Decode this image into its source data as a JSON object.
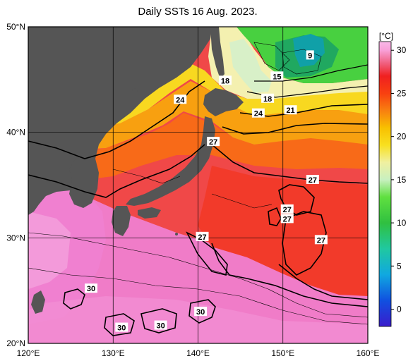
{
  "title": "Daily SSTs 16 Aug. 2023.",
  "map": {
    "lon_range": [
      120,
      160
    ],
    "lat_range": [
      20,
      50
    ],
    "lon_ticks": [
      "120°E",
      "130°E",
      "140°E",
      "150°E",
      "160°E"
    ],
    "lat_ticks": [
      "50°N",
      "40°N",
      "30°N",
      "20°N"
    ],
    "grid": true
  },
  "contour_labels": [
    {
      "text": "9",
      "lon": 153.2,
      "lat": 47.3
    },
    {
      "text": "15",
      "lon": 149.3,
      "lat": 45.3
    },
    {
      "text": "18",
      "lon": 143.2,
      "lat": 44.9
    },
    {
      "text": "18",
      "lon": 148.2,
      "lat": 43.2
    },
    {
      "text": "24",
      "lon": 137.9,
      "lat": 43.1
    },
    {
      "text": "24",
      "lon": 147.1,
      "lat": 41.8
    },
    {
      "text": "21",
      "lon": 150.9,
      "lat": 42.1
    },
    {
      "text": "27",
      "lon": 141.8,
      "lat": 39.1
    },
    {
      "text": "27",
      "lon": 153.5,
      "lat": 35.5
    },
    {
      "text": "27",
      "lon": 150.5,
      "lat": 32.7
    },
    {
      "text": "27",
      "lon": 150.5,
      "lat": 31.8
    },
    {
      "text": "27",
      "lon": 140.5,
      "lat": 30.1
    },
    {
      "text": "27",
      "lon": 154.5,
      "lat": 29.8
    },
    {
      "text": "30",
      "lon": 127.4,
      "lat": 25.2
    },
    {
      "text": "30",
      "lon": 140.3,
      "lat": 23.0
    },
    {
      "text": "30",
      "lon": 135.6,
      "lat": 21.7
    },
    {
      "text": "30",
      "lon": 131.0,
      "lat": 21.5
    }
  ],
  "colorbar": {
    "unit": "[°C]",
    "range": [
      -2,
      31
    ],
    "ticks": [
      "30",
      "25",
      "20",
      "15",
      "10",
      "5",
      "0"
    ],
    "tick_values": [
      30,
      25,
      20,
      15,
      10,
      5,
      0
    ],
    "stops": [
      {
        "v": -2,
        "c": "#3a1ccc"
      },
      {
        "v": 1,
        "c": "#1050e0"
      },
      {
        "v": 4,
        "c": "#10a8e0"
      },
      {
        "v": 7,
        "c": "#20c8a0"
      },
      {
        "v": 10,
        "c": "#30c040"
      },
      {
        "v": 13,
        "c": "#60e040"
      },
      {
        "v": 15,
        "c": "#c8f0c0"
      },
      {
        "v": 17,
        "c": "#f0f0a0"
      },
      {
        "v": 19,
        "c": "#f8e020"
      },
      {
        "v": 21,
        "c": "#f8c000"
      },
      {
        "v": 23,
        "c": "#f88010"
      },
      {
        "v": 25,
        "c": "#f84010"
      },
      {
        "v": 27,
        "c": "#f02020"
      },
      {
        "v": 28.5,
        "c": "#f06080"
      },
      {
        "v": 30,
        "c": "#f8a0d8"
      },
      {
        "v": 31,
        "c": "#f8b8e8"
      }
    ]
  },
  "colors": {
    "land": "#555555",
    "background": "#ffffff",
    "frame": "#000000"
  }
}
